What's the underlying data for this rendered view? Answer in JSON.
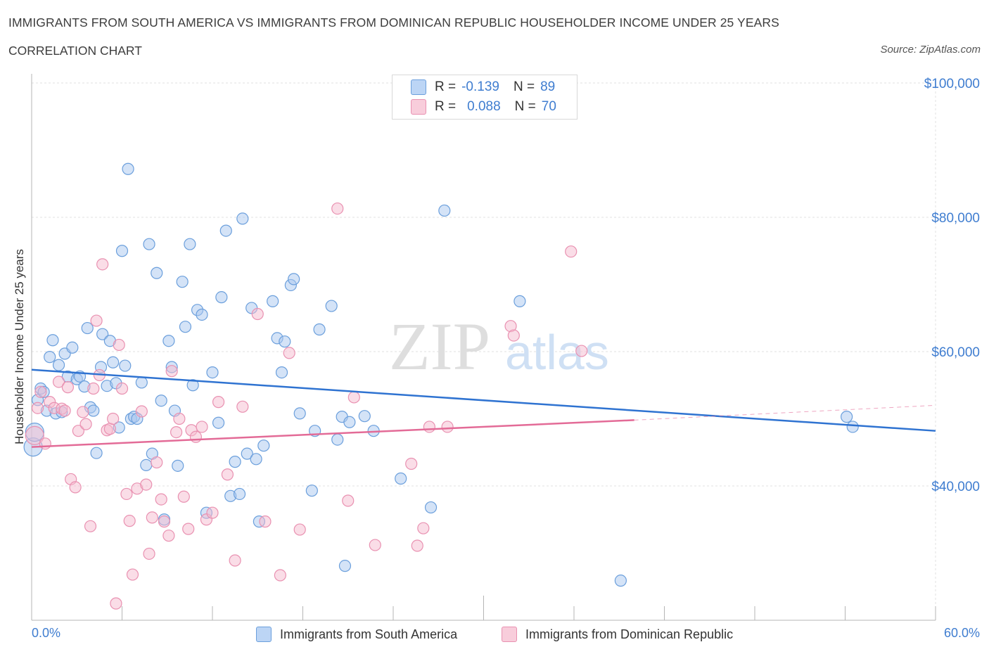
{
  "title": "IMMIGRANTS FROM SOUTH AMERICA VS IMMIGRANTS FROM DOMINICAN REPUBLIC HOUSEHOLDER INCOME UNDER 25 YEARS",
  "subtitle": "CORRELATION CHART",
  "source": "Source: ZipAtlas.com",
  "watermark": {
    "zip": "ZIP",
    "atlas": "atlas"
  },
  "legend": {
    "r_label": "R =",
    "n_label": "N =",
    "blue": {
      "r": "-0.139",
      "n": "89"
    },
    "pink": {
      "r": "0.088",
      "n": "70"
    }
  },
  "colors": {
    "blue_fill": "#a9c8f0",
    "blue_stroke": "#6b9fdc",
    "blue_line": "#2f73d1",
    "pink_fill": "#f5bcd0",
    "pink_stroke": "#e991b1",
    "pink_line": "#e36b97",
    "axis_label": "#3f7dd0",
    "grid": "#e2e2e2"
  },
  "chart_data": {
    "type": "scatter",
    "title": "IMMIGRANTS FROM SOUTH AMERICA VS IMMIGRANTS FROM DOMINICAN REPUBLIC HOUSEHOLDER INCOME UNDER 25 YEARS",
    "ylabel": "Householder Income Under 25 years",
    "xlim": [
      0,
      60
    ],
    "ylim": [
      20000,
      100000
    ],
    "x_tick_labels": [
      "0.0%",
      "60.0%"
    ],
    "y_ticks": [
      40000,
      60000,
      80000,
      100000
    ],
    "y_tick_labels": [
      "$40,000",
      "$60,000",
      "$80,000",
      "$100,000"
    ],
    "grid": true,
    "legend_position": "top-center",
    "series": [
      {
        "name": "Immigrants from South America",
        "color": "#a9c8f0",
        "trend": {
          "x": [
            0,
            60
          ],
          "y": [
            57300,
            48200
          ],
          "style": "solid"
        },
        "points": [
          [
            0.1,
            45800
          ],
          [
            0.2,
            48000
          ],
          [
            0.4,
            52800
          ],
          [
            0.6,
            54500
          ],
          [
            0.8,
            54000
          ],
          [
            1.0,
            51200
          ],
          [
            1.2,
            59200
          ],
          [
            1.4,
            61700
          ],
          [
            1.6,
            50800
          ],
          [
            1.8,
            58000
          ],
          [
            2.0,
            51000
          ],
          [
            2.2,
            59700
          ],
          [
            2.4,
            56300
          ],
          [
            2.7,
            60600
          ],
          [
            3.0,
            55900
          ],
          [
            3.2,
            56300
          ],
          [
            3.5,
            54800
          ],
          [
            3.7,
            63500
          ],
          [
            3.9,
            51700
          ],
          [
            4.1,
            51200
          ],
          [
            4.3,
            44900
          ],
          [
            4.6,
            57700
          ],
          [
            4.7,
            62600
          ],
          [
            5.0,
            54900
          ],
          [
            5.2,
            61600
          ],
          [
            5.4,
            58400
          ],
          [
            5.6,
            55300
          ],
          [
            5.8,
            48700
          ],
          [
            6.0,
            75000
          ],
          [
            6.2,
            57900
          ],
          [
            6.4,
            87200
          ],
          [
            6.6,
            50000
          ],
          [
            6.8,
            50300
          ],
          [
            7.0,
            50000
          ],
          [
            7.3,
            55400
          ],
          [
            7.6,
            43100
          ],
          [
            7.8,
            76000
          ],
          [
            8.0,
            44800
          ],
          [
            8.3,
            71700
          ],
          [
            8.6,
            52700
          ],
          [
            8.8,
            35000
          ],
          [
            9.1,
            61600
          ],
          [
            9.3,
            57700
          ],
          [
            9.5,
            51200
          ],
          [
            9.7,
            43000
          ],
          [
            10.0,
            70400
          ],
          [
            10.2,
            63700
          ],
          [
            10.5,
            76000
          ],
          [
            10.7,
            55000
          ],
          [
            11.0,
            66200
          ],
          [
            11.3,
            65500
          ],
          [
            11.6,
            36000
          ],
          [
            12.0,
            56900
          ],
          [
            12.4,
            49400
          ],
          [
            12.6,
            68100
          ],
          [
            12.9,
            78000
          ],
          [
            13.2,
            38500
          ],
          [
            13.5,
            43600
          ],
          [
            13.8,
            38800
          ],
          [
            14.0,
            79800
          ],
          [
            14.3,
            44800
          ],
          [
            14.6,
            66500
          ],
          [
            14.9,
            44000
          ],
          [
            15.1,
            34700
          ],
          [
            15.4,
            46000
          ],
          [
            16.0,
            67500
          ],
          [
            16.3,
            62000
          ],
          [
            16.6,
            56900
          ],
          [
            16.8,
            61500
          ],
          [
            17.2,
            69900
          ],
          [
            17.4,
            70800
          ],
          [
            17.8,
            50800
          ],
          [
            18.6,
            39300
          ],
          [
            18.8,
            48200
          ],
          [
            19.1,
            63300
          ],
          [
            19.9,
            66800
          ],
          [
            20.3,
            46900
          ],
          [
            20.6,
            50300
          ],
          [
            20.8,
            28100
          ],
          [
            21.1,
            49500
          ],
          [
            22.1,
            50400
          ],
          [
            22.7,
            48200
          ],
          [
            24.5,
            41100
          ],
          [
            26.5,
            36800
          ],
          [
            27.4,
            81000
          ],
          [
            32.4,
            67500
          ],
          [
            39.1,
            25900
          ],
          [
            54.1,
            50300
          ],
          [
            54.5,
            48800
          ]
        ]
      },
      {
        "name": "Immigrants from Dominican Republic",
        "color": "#f5bcd0",
        "trend": {
          "x": [
            0,
            40
          ],
          "y": [
            45800,
            49800
          ],
          "style": "solid",
          "dashed_extension": {
            "x": [
              40,
              60
            ],
            "y": [
              49800,
              52000
            ]
          }
        },
        "points": [
          [
            0.2,
            47500
          ],
          [
            0.4,
            51600
          ],
          [
            0.6,
            54000
          ],
          [
            0.9,
            46300
          ],
          [
            1.2,
            52500
          ],
          [
            1.5,
            51600
          ],
          [
            1.8,
            55500
          ],
          [
            2.0,
            51500
          ],
          [
            2.2,
            51200
          ],
          [
            2.4,
            54700
          ],
          [
            2.6,
            41000
          ],
          [
            2.9,
            39800
          ],
          [
            3.1,
            48200
          ],
          [
            3.4,
            51000
          ],
          [
            3.6,
            49200
          ],
          [
            3.9,
            34000
          ],
          [
            4.1,
            54500
          ],
          [
            4.3,
            64600
          ],
          [
            4.5,
            56500
          ],
          [
            4.7,
            73000
          ],
          [
            5.0,
            48300
          ],
          [
            5.2,
            48500
          ],
          [
            5.4,
            50000
          ],
          [
            5.6,
            22500
          ],
          [
            5.8,
            61000
          ],
          [
            6.0,
            54500
          ],
          [
            6.3,
            38800
          ],
          [
            6.5,
            34800
          ],
          [
            6.7,
            26800
          ],
          [
            7.0,
            39600
          ],
          [
            7.3,
            51100
          ],
          [
            7.6,
            40200
          ],
          [
            7.8,
            29900
          ],
          [
            8.0,
            35300
          ],
          [
            8.3,
            43500
          ],
          [
            8.6,
            38000
          ],
          [
            8.8,
            34700
          ],
          [
            9.1,
            32600
          ],
          [
            9.3,
            57100
          ],
          [
            9.6,
            48000
          ],
          [
            9.8,
            50000
          ],
          [
            10.1,
            38400
          ],
          [
            10.4,
            33600
          ],
          [
            10.6,
            48300
          ],
          [
            10.9,
            47300
          ],
          [
            11.3,
            48800
          ],
          [
            11.6,
            35000
          ],
          [
            12.0,
            36000
          ],
          [
            12.4,
            52500
          ],
          [
            13.0,
            41700
          ],
          [
            13.5,
            28900
          ],
          [
            14.0,
            51800
          ],
          [
            15.0,
            65600
          ],
          [
            15.5,
            34700
          ],
          [
            16.5,
            26700
          ],
          [
            17.1,
            59800
          ],
          [
            17.8,
            33500
          ],
          [
            20.3,
            81300
          ],
          [
            21.0,
            37800
          ],
          [
            21.4,
            53200
          ],
          [
            22.8,
            31200
          ],
          [
            25.2,
            43300
          ],
          [
            25.6,
            31100
          ],
          [
            26.0,
            33700
          ],
          [
            26.4,
            48800
          ],
          [
            27.6,
            48800
          ],
          [
            31.8,
            63800
          ],
          [
            32.0,
            62400
          ],
          [
            35.8,
            74900
          ],
          [
            36.5,
            60100
          ]
        ]
      }
    ]
  },
  "bottom_legend": {
    "blue": "Immigrants from South America",
    "pink": "Immigrants from Dominican Republic"
  }
}
